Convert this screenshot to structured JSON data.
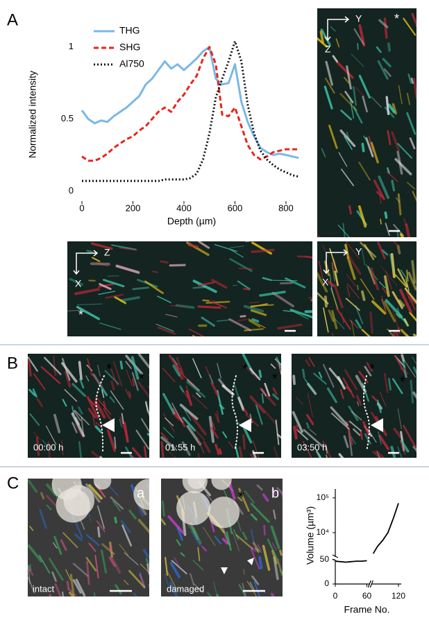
{
  "panel_labels": [
    "A",
    "B",
    "C"
  ],
  "images": [
    {
      "labels": [
        "Y",
        "Z",
        "*"
      ]
    },
    {
      "labels": [
        "Z",
        "X",
        "*"
      ]
    },
    {
      "labels": [
        "Y",
        "X"
      ]
    },
    {
      "labels": [
        "*",
        "*",
        "00:00 h"
      ]
    },
    {
      "labels": [
        "*",
        "*",
        "01:55 h"
      ]
    },
    {
      "labels": [
        "*",
        "*",
        "03:50 h"
      ]
    },
    {
      "labels": [
        "a",
        "intact"
      ]
    },
    {
      "labels": [
        "b",
        "damaged",
        "*"
      ]
    }
  ],
  "chart_data": [
    {
      "type": "line",
      "x_label": "Depth (µm)",
      "y_label": "Normalized intensity",
      "x": [
        0,
        25,
        50,
        75,
        100,
        125,
        150,
        175,
        200,
        225,
        250,
        275,
        300,
        325,
        350,
        375,
        400,
        425,
        450,
        475,
        500,
        525,
        550,
        575,
        600,
        625,
        650,
        675,
        700,
        725,
        750,
        775,
        800,
        825,
        850
      ],
      "series": [
        {
          "name": "THG",
          "color": "#7ab8e6",
          "line_style": "solid",
          "values": [
            0.56,
            0.5,
            0.47,
            0.49,
            0.48,
            0.52,
            0.55,
            0.58,
            0.62,
            0.66,
            0.74,
            0.78,
            0.84,
            0.9,
            0.85,
            0.88,
            0.84,
            0.88,
            0.92,
            0.97,
            1.0,
            0.78,
            0.74,
            0.75,
            0.88,
            0.62,
            0.48,
            0.38,
            0.3,
            0.27,
            0.25,
            0.26,
            0.25,
            0.24,
            0.23
          ]
        },
        {
          "name": "SHG",
          "color": "#e8251b",
          "line_style": "dashed",
          "values": [
            0.24,
            0.21,
            0.21,
            0.23,
            0.26,
            0.3,
            0.33,
            0.36,
            0.38,
            0.42,
            0.45,
            0.5,
            0.55,
            0.58,
            0.55,
            0.62,
            0.67,
            0.74,
            0.8,
            0.92,
            1.0,
            0.88,
            0.53,
            0.52,
            0.58,
            0.45,
            0.32,
            0.25,
            0.22,
            0.24,
            0.27,
            0.28,
            0.29,
            0.29,
            0.29
          ]
        },
        {
          "name": "Al750",
          "color": "#111111",
          "line_style": "dotted",
          "values": [
            0.07,
            0.07,
            0.07,
            0.07,
            0.07,
            0.07,
            0.07,
            0.07,
            0.07,
            0.07,
            0.07,
            0.07,
            0.07,
            0.08,
            0.08,
            0.08,
            0.08,
            0.09,
            0.12,
            0.22,
            0.4,
            0.65,
            0.78,
            0.9,
            1.04,
            0.9,
            0.6,
            0.4,
            0.28,
            0.22,
            0.18,
            0.15,
            0.13,
            0.11,
            0.1
          ]
        }
      ],
      "xlim": [
        0,
        860
      ],
      "xticks": [
        0,
        200,
        400,
        600,
        800
      ],
      "ylim": [
        -0.07,
        1.1
      ],
      "yticks": [
        0,
        0.5,
        1
      ],
      "legend": "top-left"
    },
    {
      "type": "line",
      "x_label": "Frame No.",
      "y_label": "Volume (µm³)",
      "series": [
        {
          "color": "#000000",
          "x": [
            0,
            10,
            20,
            30,
            40,
            50,
            60
          ],
          "values": [
            47,
            46,
            45,
            46,
            47,
            47,
            48
          ]
        },
        {
          "color": "#000000",
          "axis": "y2",
          "x": [
            72,
            80,
            90,
            100,
            110,
            120
          ],
          "values": [
            2500,
            4000,
            6000,
            10000,
            25000,
            70000
          ]
        }
      ],
      "xlim": [
        0,
        120
      ],
      "xticks": [
        0,
        60,
        120
      ],
      "ylim": [
        0,
        60
      ],
      "yticks": [
        0,
        50
      ],
      "y2lim": [
        2300,
        180000
      ],
      "y2log": true,
      "y2ticks": [
        {
          "value": 10000,
          "label": "10⁴"
        },
        {
          "value": 100000,
          "label": "10⁵"
        }
      ]
    }
  ]
}
